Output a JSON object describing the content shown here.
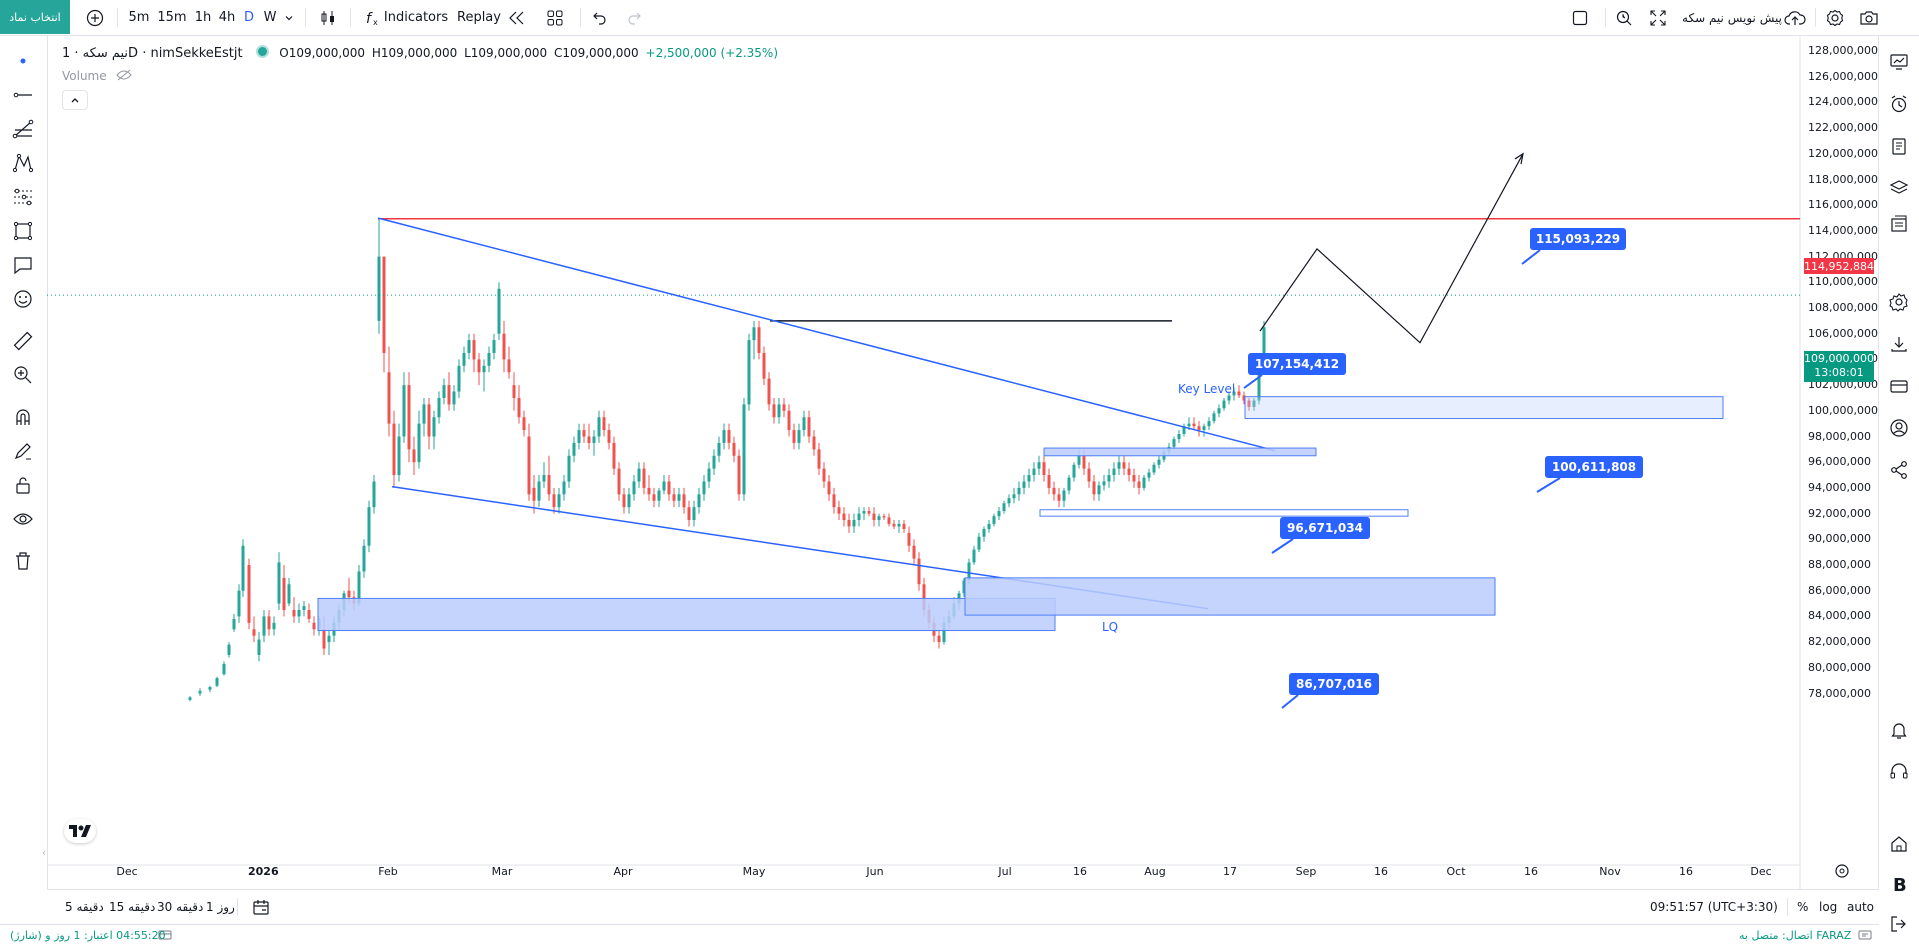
{
  "topbar": {
    "symbol_search": "انتخاب نماد",
    "intervals": [
      "5m",
      "15m",
      "1h",
      "4h",
      "D",
      "W"
    ],
    "active_interval": "D",
    "indicators_label": "Indicators",
    "replay_label": "Replay",
    "pre_open_label": "پیش نویس نیم سکه"
  },
  "legend": {
    "title": "نیم سکه · 1D · nimSekkeEstjt",
    "open": "O109,000,000",
    "high": "H109,000,000",
    "low": "L109,000,000",
    "close": "C109,000,000",
    "change": "+2,500,000 (+2.35%)",
    "volume_label": "Volume"
  },
  "price_axis": {
    "ticks": [
      "128,000,000",
      "126,000,000",
      "124,000,000",
      "122,000,000",
      "120,000,000",
      "118,000,000",
      "116,000,000",
      "114,000,000",
      "112,000,000",
      "110,000,000",
      "108,000,000",
      "106,000,000",
      "104,000,000",
      "102,000,000",
      "100,000,000",
      "98,000,000",
      "96,000,000",
      "94,000,000",
      "92,000,000",
      "90,000,000",
      "88,000,000",
      "86,000,000",
      "84,000,000",
      "82,000,000",
      "80,000,000",
      "78,000,000"
    ],
    "red_level": "114,952,884",
    "last_price": "109,000,000",
    "countdown": "13:08:01"
  },
  "time_axis": {
    "labels": [
      "Dec",
      "2026",
      "Feb",
      "Mar",
      "Apr",
      "May",
      "Jun",
      "Jul",
      "16",
      "Aug",
      "17",
      "Sep",
      "16",
      "Oct",
      "16",
      "Nov",
      "16",
      "Dec"
    ]
  },
  "annotations": {
    "key_level": "Key Level",
    "lq": "LQ",
    "badges": [
      "115,093,229",
      "107,154,412",
      "100,611,808",
      "96,671,034",
      "86,707,016"
    ]
  },
  "bottombar": {
    "ranges": [
      "5 دقیقه",
      "15 دقیقه",
      "30 دقیقه",
      "1 روز"
    ],
    "clock": "09:51:57 (UTC+3:30)",
    "percent": "%",
    "log": "log",
    "auto": "auto"
  },
  "statusbar": {
    "left": "(شارژ) 04:55:20 اعتبار: 1 روز و",
    "right": "اتصال: متصل به FARAZ"
  },
  "colors": {
    "up": "#26a69a",
    "down": "#ef5350",
    "accent": "#2962ff",
    "zone_fill": "#bbcdfd",
    "zone_stroke": "#4f7ef5",
    "badge": "#2962ff",
    "red_level": "#f23645"
  }
}
